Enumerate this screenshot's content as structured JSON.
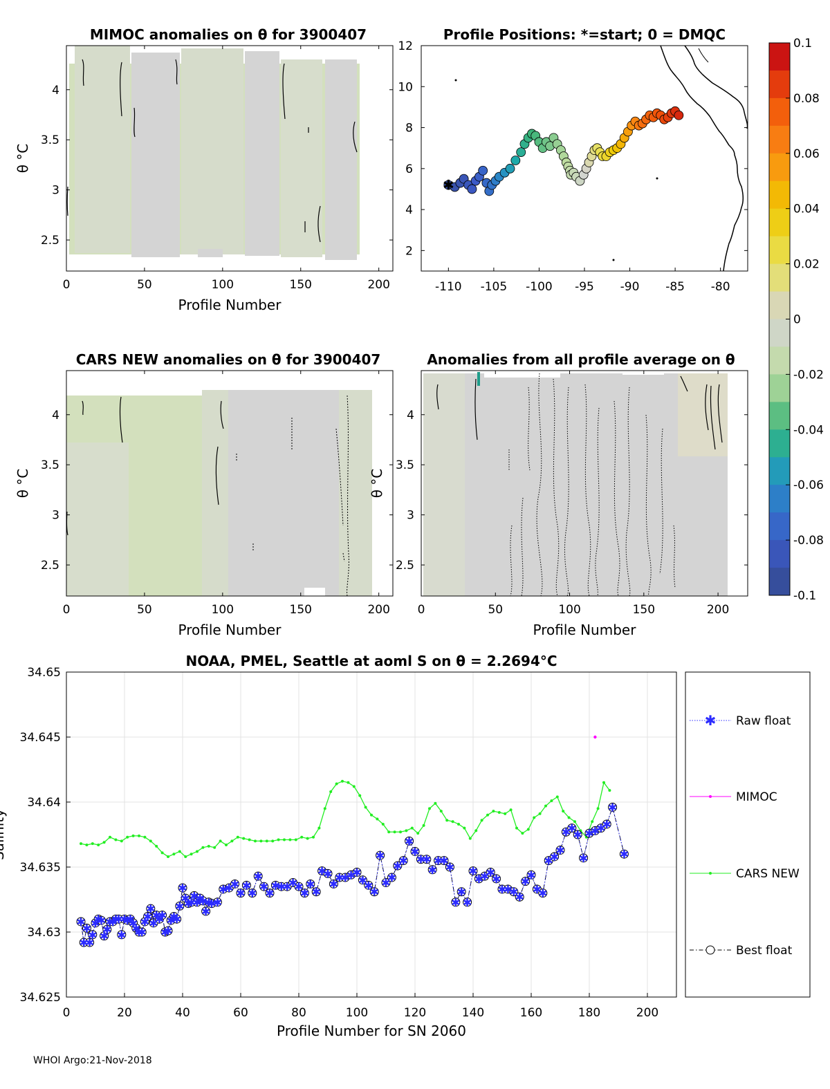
{
  "footer": "WHOI Argo:21-Nov-2018",
  "colors": {
    "raw_float": "#2b2bff",
    "mimoc": "#ff00ff",
    "cars_new": "#22ee22",
    "best_float": "#000000",
    "field_grey": "#d4d4d4",
    "field_green": "#d3e0bd"
  },
  "panel_mimoc": {
    "title": "MIMOC anomalies on θ  for 3900407",
    "xlabel": "Profile Number",
    "ylabel": "θ °C",
    "xticks": [
      "0",
      "50",
      "100",
      "150",
      "200"
    ],
    "yticks": [
      "4",
      "3.5",
      "3",
      "2.5"
    ]
  },
  "panel_map": {
    "title": "Profile Positions: *=start; 0 = DMQC",
    "xticks": [
      "-110",
      "-105",
      "-100",
      "-95",
      "-90",
      "-85",
      "-80"
    ],
    "yticks": [
      "12",
      "10",
      "8",
      "6",
      "4",
      "2"
    ]
  },
  "colorbar": {
    "ticks": [
      "0.1",
      "0.08",
      "0.06",
      "0.04",
      "0.02",
      "0",
      "-0.02",
      "-0.04",
      "-0.06",
      "-0.08",
      "-0.1"
    ]
  },
  "panel_cars": {
    "title": "CARS NEW anomalies on θ for 3900407",
    "xlabel": "Profile Number",
    "ylabel": "θ °C",
    "xticks": [
      "0",
      "50",
      "100",
      "150",
      "200"
    ],
    "yticks": [
      "4",
      "3.5",
      "3",
      "2.5"
    ]
  },
  "panel_allavg": {
    "title": "Anomalies from all profile average on θ",
    "xlabel": "Profile Number",
    "ylabel": "θ °C",
    "xticks": [
      "0",
      "50",
      "100",
      "150",
      "200"
    ],
    "yticks": [
      "4",
      "3.5",
      "3",
      "2.5"
    ]
  },
  "chart_data": [
    {
      "type": "line",
      "title": "NOAA, PMEL, Seattle at aoml S on θ = 2.2694°C",
      "xlabel": "Profile Number for SN 2060",
      "ylabel": "Salinity",
      "xlim": [
        0,
        210
      ],
      "ylim": [
        34.625,
        34.65
      ],
      "xticks": [
        "0",
        "20",
        "40",
        "60",
        "80",
        "100",
        "120",
        "140",
        "160",
        "180",
        "200"
      ],
      "yticks": [
        "34.65",
        "34.645",
        "34.64",
        "34.635",
        "34.63",
        "34.625"
      ],
      "grid": true,
      "legend_placement": "outside-right",
      "legend": [
        "Raw float",
        "MIMOC",
        "CARS NEW",
        "Best float"
      ],
      "series": [
        {
          "name": "CARS NEW",
          "x": [
            5,
            7,
            9,
            11,
            13,
            15,
            17,
            19,
            21,
            23,
            25,
            27,
            29,
            31,
            33,
            35,
            37,
            39,
            41,
            43,
            45,
            47,
            49,
            51,
            53,
            55,
            57,
            59,
            61,
            63,
            65,
            67,
            69,
            71,
            73,
            75,
            77,
            79,
            81,
            83,
            85,
            87,
            89,
            91,
            93,
            95,
            97,
            99,
            101,
            103,
            105,
            107,
            109,
            111,
            113,
            115,
            117,
            119,
            121,
            123,
            125,
            127,
            129,
            131,
            133,
            135,
            137,
            139,
            141,
            143,
            145,
            147,
            149,
            151,
            153,
            155,
            157,
            159,
            161,
            163,
            165,
            167,
            169,
            171,
            173,
            175,
            177,
            179,
            181,
            183,
            185,
            187
          ],
          "values": [
            34.6368,
            34.6367,
            34.6368,
            34.6367,
            34.6369,
            34.6373,
            34.6371,
            34.637,
            34.6373,
            34.6374,
            34.6374,
            34.6373,
            34.637,
            34.6366,
            34.6361,
            34.6358,
            34.636,
            34.6362,
            34.6358,
            34.636,
            34.6362,
            34.6365,
            34.6366,
            34.6365,
            34.637,
            34.6367,
            34.637,
            34.6373,
            34.6372,
            34.6371,
            34.637,
            34.637,
            34.637,
            34.637,
            34.6371,
            34.6371,
            34.6371,
            34.6371,
            34.6373,
            34.6372,
            34.6373,
            34.638,
            34.6395,
            34.6408,
            34.6414,
            34.6416,
            34.6415,
            34.6412,
            34.6405,
            34.6396,
            34.639,
            34.6387,
            34.6383,
            34.6377,
            34.6377,
            34.6377,
            34.6378,
            34.638,
            34.6376,
            34.6382,
            34.6395,
            34.6399,
            34.6393,
            34.6386,
            34.6385,
            34.6383,
            34.638,
            34.6372,
            34.6378,
            34.6386,
            34.639,
            34.6393,
            34.6392,
            34.6391,
            34.6394,
            34.638,
            34.6376,
            34.6379,
            34.6388,
            34.6391,
            34.6397,
            34.6401,
            34.6404,
            34.6393,
            34.6388,
            34.6385,
            34.6378,
            34.6373,
            34.6385,
            34.6395,
            34.6415,
            34.6409
          ]
        },
        {
          "name": "MIMOC",
          "x": [
            182
          ],
          "values": [
            34.645
          ]
        },
        {
          "name": "Raw float",
          "x": [
            5,
            6,
            7,
            8,
            9,
            10,
            11,
            12,
            13,
            14,
            15,
            16,
            17,
            18,
            19,
            20,
            21,
            22,
            23,
            24,
            25,
            26,
            27,
            28,
            29,
            30,
            31,
            32,
            33,
            34,
            35,
            36,
            37,
            38,
            39,
            40,
            41,
            42,
            43,
            44,
            45,
            46,
            47,
            48,
            49,
            50,
            52,
            54,
            56,
            58,
            60,
            62,
            64,
            66,
            68,
            70,
            72,
            74,
            76,
            78,
            80,
            82,
            84,
            86,
            88,
            90,
            92,
            94,
            96,
            98,
            100,
            102,
            104,
            106,
            108,
            110,
            112,
            114,
            116,
            118,
            120,
            122,
            124,
            126,
            128,
            130,
            132,
            134,
            136,
            138,
            140,
            142,
            144,
            146,
            148,
            150,
            152,
            154,
            156,
            158,
            160,
            162,
            164,
            166,
            168,
            170,
            172,
            174,
            176,
            178,
            180,
            182,
            184,
            186,
            188,
            192
          ],
          "values": [
            34.6308,
            34.6292,
            34.6303,
            34.6292,
            34.6298,
            34.6307,
            34.631,
            34.6309,
            34.6297,
            34.6302,
            34.6308,
            34.6308,
            34.631,
            34.631,
            34.6298,
            34.631,
            34.6309,
            34.631,
            34.6307,
            34.6303,
            34.63,
            34.63,
            34.6308,
            34.6312,
            34.6318,
            34.6307,
            34.6313,
            34.631,
            34.6313,
            34.63,
            34.6301,
            34.6309,
            34.6312,
            34.631,
            34.632,
            34.6334,
            34.6326,
            34.6322,
            34.6323,
            34.6328,
            34.6323,
            34.6326,
            34.6324,
            34.6316,
            34.6323,
            34.6322,
            34.6323,
            34.6333,
            34.6334,
            34.6337,
            34.633,
            34.6336,
            34.633,
            34.6343,
            34.6335,
            34.633,
            34.6336,
            34.6335,
            34.6335,
            34.6338,
            34.6335,
            34.633,
            34.6337,
            34.6331,
            34.6347,
            34.6345,
            34.6337,
            34.6342,
            34.6342,
            34.6344,
            34.6346,
            34.634,
            34.6336,
            34.6331,
            34.6359,
            34.6338,
            34.6342,
            34.6351,
            34.6355,
            34.637,
            34.6362,
            34.6356,
            34.6356,
            34.6348,
            34.6355,
            34.6355,
            34.635,
            34.6323,
            34.6331,
            34.6323,
            34.6347,
            34.6341,
            34.6343,
            34.6346,
            34.6341,
            34.6333,
            34.6333,
            34.6331,
            34.6327,
            34.6339,
            34.6344,
            34.6333,
            34.633,
            34.6355,
            34.6358,
            34.6363,
            34.6377,
            34.638,
            34.6375,
            34.6357,
            34.6376,
            34.6378,
            34.638,
            34.6383,
            34.6396,
            34.636
          ]
        },
        {
          "name": "Best float",
          "x": [
            5,
            6,
            7,
            8,
            9,
            10,
            11,
            12,
            13,
            14,
            15,
            16,
            17,
            18,
            19,
            20,
            21,
            22,
            23,
            24,
            25,
            26,
            27,
            28,
            29,
            30,
            31,
            32,
            33,
            34,
            35,
            36,
            37,
            38,
            39,
            40,
            41,
            42,
            43,
            44,
            45,
            46,
            47,
            48,
            49,
            50,
            52,
            54,
            56,
            58,
            60,
            62,
            64,
            66,
            68,
            70,
            72,
            74,
            76,
            78,
            80,
            82,
            84,
            86,
            88,
            90,
            92,
            94,
            96,
            98,
            100,
            102,
            104,
            106,
            108,
            110,
            112,
            114,
            116,
            118,
            120,
            122,
            124,
            126,
            128,
            130,
            132,
            134,
            136,
            138,
            140,
            142,
            144,
            146,
            148,
            150,
            152,
            154,
            156,
            158,
            160,
            162,
            164,
            166,
            168,
            170,
            172,
            174,
            176,
            178,
            180,
            182,
            184,
            186,
            188,
            192
          ],
          "values": [
            34.6308,
            34.6292,
            34.6303,
            34.6292,
            34.6298,
            34.6307,
            34.631,
            34.6309,
            34.6297,
            34.6302,
            34.6308,
            34.6308,
            34.631,
            34.631,
            34.6298,
            34.631,
            34.6309,
            34.631,
            34.6307,
            34.6303,
            34.63,
            34.63,
            34.6308,
            34.6312,
            34.6318,
            34.6307,
            34.6313,
            34.631,
            34.6313,
            34.63,
            34.6301,
            34.6309,
            34.6312,
            34.631,
            34.632,
            34.6334,
            34.6326,
            34.6322,
            34.6323,
            34.6328,
            34.6323,
            34.6326,
            34.6324,
            34.6316,
            34.6323,
            34.6322,
            34.6323,
            34.6333,
            34.6334,
            34.6337,
            34.633,
            34.6336,
            34.633,
            34.6343,
            34.6335,
            34.633,
            34.6336,
            34.6335,
            34.6335,
            34.6338,
            34.6335,
            34.633,
            34.6337,
            34.6331,
            34.6347,
            34.6345,
            34.6337,
            34.6342,
            34.6342,
            34.6344,
            34.6346,
            34.634,
            34.6336,
            34.6331,
            34.6359,
            34.6338,
            34.6342,
            34.6351,
            34.6355,
            34.637,
            34.6362,
            34.6356,
            34.6356,
            34.6348,
            34.6355,
            34.6355,
            34.635,
            34.6323,
            34.6331,
            34.6323,
            34.6347,
            34.6341,
            34.6343,
            34.6346,
            34.6341,
            34.6333,
            34.6333,
            34.6331,
            34.6327,
            34.6339,
            34.6344,
            34.6333,
            34.633,
            34.6355,
            34.6358,
            34.6363,
            34.6377,
            34.638,
            34.6375,
            34.6357,
            34.6376,
            34.6378,
            34.638,
            34.6383,
            34.6396,
            34.636
          ]
        }
      ]
    },
    {
      "type": "scatter",
      "title": "Profile Positions: *=start; 0 = DMQC",
      "xlim": [
        -113,
        -77
      ],
      "ylim": [
        1,
        12
      ],
      "colorbar": [
        -0.1,
        0.1
      ],
      "series": [
        {
          "name": "",
          "lon": [
            -110.0,
            -109.3,
            -108.7,
            -108.3,
            -107.8,
            -107.4,
            -107.0,
            -106.6,
            -106.2,
            -105.8,
            -105.5,
            -105.2,
            -104.8,
            -104.4,
            -103.8,
            -103.2,
            -102.6,
            -102.0,
            -101.6,
            -101.2,
            -100.8,
            -100.4,
            -100.0,
            -99.6,
            -99.2,
            -98.8,
            -98.4,
            -98.0,
            -97.6,
            -97.3,
            -97.0,
            -96.8,
            -96.6,
            -96.5,
            -96.2,
            -95.9,
            -95.5,
            -95.1,
            -94.8,
            -94.5,
            -94.2,
            -93.9,
            -93.6,
            -93.3,
            -93.0,
            -92.6,
            -92.2,
            -91.8,
            -91.4,
            -91.0,
            -90.6,
            -90.2,
            -89.8,
            -89.4,
            -89.0,
            -88.6,
            -88.2,
            -87.8,
            -87.4,
            -87.0,
            -86.6,
            -86.2,
            -85.8,
            -85.4,
            -85.0,
            -84.6
          ],
          "lat": [
            5.2,
            5.1,
            5.3,
            5.5,
            5.2,
            5.0,
            5.4,
            5.6,
            5.9,
            5.3,
            4.9,
            5.2,
            5.4,
            5.6,
            5.8,
            6.0,
            6.4,
            6.8,
            7.2,
            7.5,
            7.7,
            7.6,
            7.3,
            7.0,
            7.3,
            7.1,
            7.5,
            7.2,
            6.9,
            6.6,
            6.3,
            6.1,
            5.9,
            5.7,
            5.8,
            5.6,
            5.4,
            5.7,
            6.0,
            6.3,
            6.6,
            6.9,
            7.0,
            6.8,
            6.6,
            6.6,
            6.8,
            6.9,
            7.0,
            7.2,
            7.5,
            7.8,
            8.1,
            8.3,
            8.1,
            8.2,
            8.4,
            8.6,
            8.5,
            8.7,
            8.6,
            8.4,
            8.5,
            8.7,
            8.8,
            8.6
          ],
          "anomaly": [
            -0.09,
            -0.09,
            -0.088,
            -0.086,
            -0.084,
            -0.082,
            -0.08,
            -0.078,
            -0.076,
            -0.074,
            -0.072,
            -0.07,
            -0.066,
            -0.062,
            -0.058,
            -0.054,
            -0.05,
            -0.046,
            -0.044,
            -0.042,
            -0.04,
            -0.038,
            -0.036,
            -0.034,
            -0.032,
            -0.03,
            -0.028,
            -0.026,
            -0.024,
            -0.022,
            -0.02,
            -0.018,
            -0.016,
            -0.014,
            -0.012,
            -0.01,
            -0.006,
            -0.002,
            0.002,
            0.006,
            0.01,
            0.014,
            0.018,
            0.022,
            0.026,
            0.03,
            0.034,
            0.038,
            0.042,
            0.046,
            0.05,
            0.054,
            0.058,
            0.062,
            0.066,
            0.07,
            0.072,
            0.074,
            0.076,
            0.078,
            0.08,
            0.082,
            0.084,
            0.086,
            0.088,
            0.09
          ]
        }
      ]
    }
  ]
}
